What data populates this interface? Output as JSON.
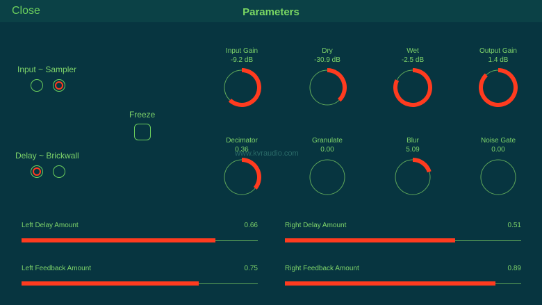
{
  "header": {
    "close": "Close",
    "title": "Parameters"
  },
  "toggles": {
    "input_sampler": {
      "label": "Input ~ Sampler"
    },
    "delay_brickwall": {
      "label": "Delay ~ Brickwall"
    },
    "freeze": {
      "label": "Freeze"
    }
  },
  "knobs": [
    {
      "name": "Input Gain",
      "value": "-9.2 dB",
      "fraction": 0.62
    },
    {
      "name": "Dry",
      "value": "-30.9 dB",
      "fraction": 0.38
    },
    {
      "name": "Wet",
      "value": "-2.5 dB",
      "fraction": 0.82
    },
    {
      "name": "Output Gain",
      "value": "1.4 dB",
      "fraction": 0.88
    },
    {
      "name": "Decimator",
      "value": "0.36",
      "fraction": 0.36
    },
    {
      "name": "Granulate",
      "value": "0.00",
      "fraction": 0.0
    },
    {
      "name": "Blur",
      "value": "5.09",
      "fraction": 0.2
    },
    {
      "name": "Noise Gate",
      "value": "0.00",
      "fraction": 0.0
    }
  ],
  "sliders": [
    {
      "name": "Left Delay Amount",
      "value": "0.66",
      "fraction": 0.82
    },
    {
      "name": "Right Delay Amount",
      "value": "0.51",
      "fraction": 0.72
    },
    {
      "name": "Left Feedback Amount",
      "value": "0.75",
      "fraction": 0.75
    },
    {
      "name": "Right Feedback Amount",
      "value": "0.89",
      "fraction": 0.89
    }
  ],
  "watermark": "www.kvraudio.com",
  "colors": {
    "background": "#073540",
    "accent": "#ff3b1f",
    "text": "#7ed46a"
  }
}
